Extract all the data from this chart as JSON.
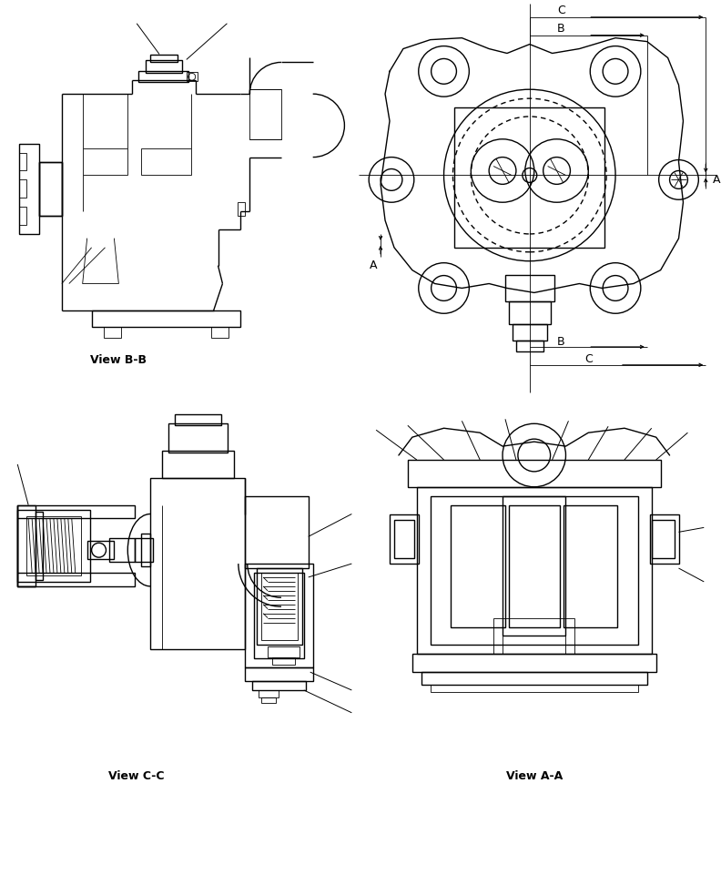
{
  "bg_color": "#ffffff",
  "lc": "#000000",
  "lw": 1.0,
  "tlw": 0.6,
  "fig_width": 7.92,
  "fig_height": 9.61,
  "label_bb": "View B-B",
  "label_cc": "View C-C",
  "label_aa": "View A-A"
}
